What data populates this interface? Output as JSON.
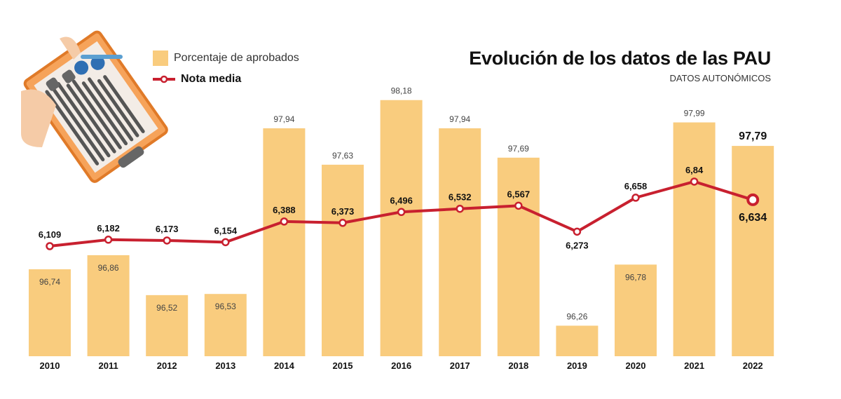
{
  "chart_data": {
    "type": "bar+line",
    "title": "Evolución de los datos de las PAU",
    "subtitle": "DATOS AUTONÓMICOS",
    "categories": [
      "2010",
      "2011",
      "2012",
      "2013",
      "2014",
      "2015",
      "2016",
      "2017",
      "2018",
      "2019",
      "2020",
      "2021",
      "2022"
    ],
    "series": [
      {
        "name": "Porcentaje de aprobados",
        "type": "bar",
        "color": "#f9cc7e",
        "values": [
          96.74,
          96.86,
          96.52,
          96.53,
          97.94,
          97.63,
          98.18,
          97.94,
          97.69,
          96.26,
          96.78,
          97.99,
          97.79
        ],
        "labels": [
          "96,74",
          "96,86",
          "96,52",
          "96,53",
          "97,94",
          "97,63",
          "98,18",
          "97,94",
          "97,69",
          "96,26",
          "96,78",
          "97,99",
          "97,79"
        ]
      },
      {
        "name": "Nota media",
        "type": "line",
        "color": "#c8202f",
        "values": [
          6.109,
          6.182,
          6.173,
          6.154,
          6.388,
          6.373,
          6.496,
          6.532,
          6.567,
          6.273,
          6.658,
          6.84,
          6.634
        ],
        "labels": [
          "6,109",
          "6,182",
          "6,173",
          "6,154",
          "6,388",
          "6,373",
          "6,496",
          "6,532",
          "6,567",
          "6,273",
          "6,658",
          "6,84",
          "6,634"
        ]
      }
    ],
    "bar_ylim": [
      96,
      98.25
    ],
    "grid": false,
    "legend_placement": "top-left"
  }
}
